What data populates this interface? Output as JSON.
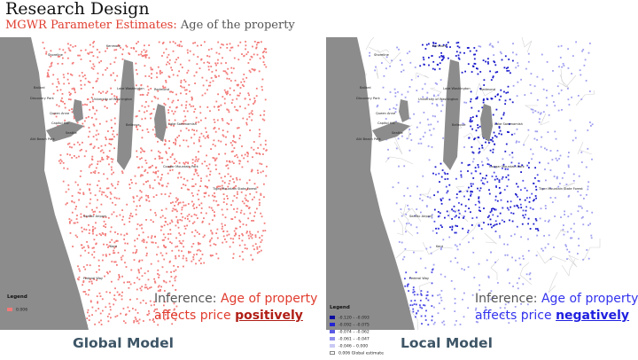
{
  "header": {
    "title": "Research Design",
    "subtitle_prefix": "MGWR Parameter Estimates:",
    "subtitle_suffix": "Age of the property"
  },
  "colors": {
    "global_points": "#f27a78",
    "local_dark": "#1a1acb",
    "local_mid": "#4d4de6",
    "local_light": "#9e9eef",
    "water": "#8c8c8c",
    "land": "#ffffff",
    "boundaries": "#cfcfcf"
  },
  "place_names": [
    "Kenmore",
    "Shoreline",
    "Ballard",
    "Lake Washington",
    "Redmond",
    "Discovery Park",
    "University of Washington",
    "Queen Anne",
    "Capitol Hill",
    "Bellevue",
    "Lake Sammamish",
    "Seattle",
    "Alki Beach Park",
    "Cougar Mountain Park",
    "Tiger Mountain State Forest",
    "SeaTac Airport",
    "Kent",
    "Federal Way"
  ],
  "global": {
    "legend_title": "Legend",
    "legend_items": [
      {
        "label": "0.006",
        "color": "#f27a78"
      }
    ],
    "inference_label": "Inference:",
    "inference_highlight": "Age of property",
    "inference_line2": "affects price",
    "inference_emphasis": "positively",
    "model_label": "Global Model"
  },
  "local": {
    "legend_title": "Legend",
    "legend_items": [
      {
        "label": "-0.120 – -0.093",
        "color": "#0b0b9e"
      },
      {
        "label": "-0.092 – -0.075",
        "color": "#2424d4"
      },
      {
        "label": "-0.074 – -0.062",
        "color": "#5a5ae6"
      },
      {
        "label": "-0.061 – -0.047",
        "color": "#8f8fee"
      },
      {
        "label": "-0.046 – 0.000",
        "color": "#c9c9f5"
      },
      {
        "label": "0.006   Global estimate",
        "color": "#ffffff"
      }
    ],
    "inference_label": "Inference:",
    "inference_highlight": "Age of property",
    "inference_line2": "affects price",
    "inference_emphasis": "negatively",
    "model_label": "Local Model"
  }
}
